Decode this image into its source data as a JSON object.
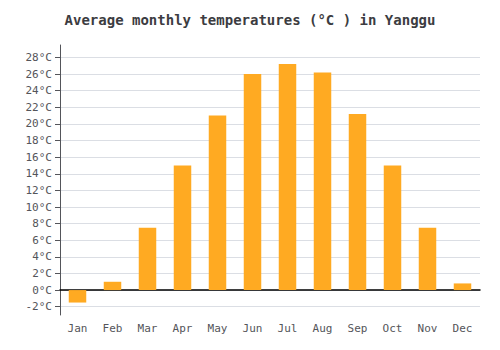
{
  "chart_data": {
    "type": "bar",
    "title": "Average monthly temperatures (°C ) in Yanggu",
    "categories": [
      "Jan",
      "Feb",
      "Mar",
      "Apr",
      "May",
      "Jun",
      "Jul",
      "Aug",
      "Sep",
      "Oct",
      "Nov",
      "Dec"
    ],
    "values": [
      -1.5,
      1.0,
      7.5,
      15.0,
      21.0,
      26.0,
      27.2,
      26.2,
      21.2,
      15.0,
      7.5,
      0.8
    ],
    "color": "#FFAA22",
    "ylim": [
      -3.0,
      29.5
    ],
    "yticks": [
      {
        "value": -2,
        "label": "-2°C"
      },
      {
        "value": 0,
        "label": "0°C"
      },
      {
        "value": 2,
        "label": "2°C"
      },
      {
        "value": 4,
        "label": "4°C"
      },
      {
        "value": 6,
        "label": "6°C"
      },
      {
        "value": 8,
        "label": "8°C"
      },
      {
        "value": 10,
        "label": "10°C"
      },
      {
        "value": 12,
        "label": "12°C"
      },
      {
        "value": 14,
        "label": "14°C"
      },
      {
        "value": 16,
        "label": "16°C"
      },
      {
        "value": 18,
        "label": "18°C"
      },
      {
        "value": 20,
        "label": "20°C"
      },
      {
        "value": 22,
        "label": "22°C"
      },
      {
        "value": 24,
        "label": "24°C"
      },
      {
        "value": 26,
        "label": "26°C"
      },
      {
        "value": 28,
        "label": "28°C"
      }
    ],
    "grid": true
  }
}
